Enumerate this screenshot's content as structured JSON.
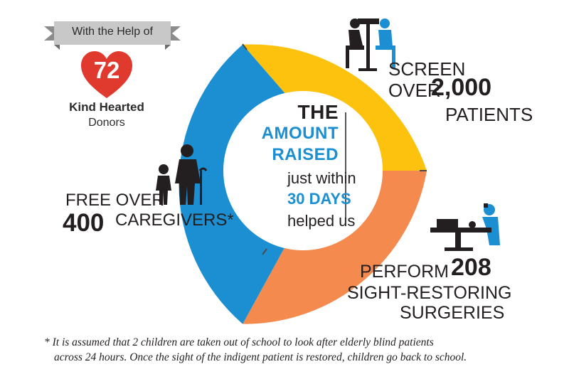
{
  "colors": {
    "yellow": "#fdc20e",
    "orange": "#f58a4e",
    "blue": "#1b8fd1",
    "red": "#e03a2f",
    "dark": "#231f20",
    "gray_banner": "#b3b3b3"
  },
  "donors": {
    "banner_text": "With the Help of",
    "count": "72",
    "line1": "Kind Hearted",
    "line2": "Donors"
  },
  "center": {
    "line1": "THE",
    "line2": "AMOUNT",
    "line3": "RAISED",
    "line4": "just within",
    "line5": "30 DAYS",
    "line6": "helped us"
  },
  "segments": {
    "screen": {
      "line1": "SCREEN",
      "line2a": "OVER",
      "line2b": "2,000",
      "line3": "PATIENTS",
      "icon": "doctor-patient-icon"
    },
    "caregivers": {
      "line1": "FREE OVER",
      "number": "400",
      "line2": "CAREGIVERS*",
      "icon": "elderly-child-icon"
    },
    "surgeries": {
      "line1": "PERFORM",
      "number": "208",
      "line2": "SIGHT-RESTORING",
      "line3": "SURGERIES",
      "icon": "surgeon-icon"
    }
  },
  "footnote": {
    "line1": "* It is assumed that 2 children are taken out of school to look after elderly blind patients",
    "line2": "across 24 hours. Once the sight of the indigent patient is restored, children go back to school."
  }
}
